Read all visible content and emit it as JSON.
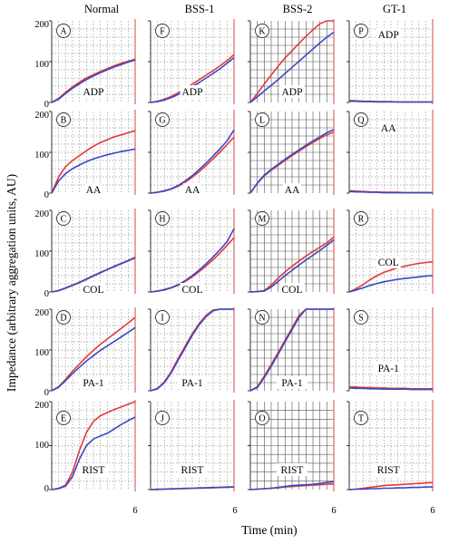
{
  "figure": {
    "column_headers": [
      "Normal",
      "BSS-1",
      "BSS-2",
      "GT-1"
    ],
    "y_axis_label": "Impedance (arbitrary aggregation units, AU)",
    "x_axis_label": "Time (min)",
    "y_tick_labels": [
      "0",
      "100",
      "200"
    ],
    "x_end_tick_label": "6"
  },
  "colors": {
    "red_trace": "#e23a3a",
    "blue_trace": "#3a48c4",
    "end_line": "#e88a8a"
  },
  "chart_data": {
    "type": "line",
    "layout": "5 rows (agonists) x 4 columns (subjects)",
    "x_unit": "min",
    "xlim": [
      0,
      6
    ],
    "ylim": [
      0,
      200
    ],
    "x": [
      0,
      0.5,
      1,
      1.5,
      2,
      2.5,
      3,
      3.5,
      4,
      4.5,
      5,
      5.5,
      6
    ],
    "columns": [
      "Normal",
      "BSS-1",
      "BSS-2",
      "GT-1"
    ],
    "rows": [
      "ADP",
      "AA",
      "COL",
      "PA-1",
      "RIST"
    ],
    "panels": [
      {
        "letter": "A",
        "column": "Normal",
        "agonist": "ADP",
        "red": [
          0,
          10,
          25,
          38,
          50,
          60,
          68,
          76,
          83,
          90,
          96,
          101,
          106
        ],
        "blue": [
          0,
          8,
          22,
          35,
          46,
          56,
          65,
          73,
          80,
          87,
          93,
          99,
          104
        ]
      },
      {
        "letter": "F",
        "column": "BSS-1",
        "agonist": "ADP",
        "red": [
          0,
          3,
          8,
          15,
          24,
          34,
          45,
          56,
          67,
          78,
          90,
          103,
          117
        ],
        "blue": [
          0,
          2,
          6,
          12,
          20,
          29,
          39,
          49,
          60,
          71,
          83,
          96,
          110
        ]
      },
      {
        "letter": "K",
        "column": "BSS-2",
        "agonist": "ADP",
        "red": [
          0,
          22,
          45,
          67,
          89,
          109,
          127,
          145,
          162,
          178,
          193,
          206,
          215
        ],
        "blue": [
          0,
          14,
          28,
          42,
          56,
          71,
          86,
          101,
          116,
          131,
          146,
          160,
          172
        ]
      },
      {
        "letter": "P",
        "column": "GT-1",
        "agonist": "ADP",
        "red": [
          5,
          4,
          3,
          3,
          2,
          2,
          2,
          1,
          1,
          1,
          1,
          1,
          1
        ],
        "blue": [
          3,
          3,
          2,
          2,
          1,
          1,
          1,
          1,
          1,
          1,
          1,
          1,
          1
        ]
      },
      {
        "letter": "B",
        "column": "Normal",
        "agonist": "AA",
        "red": [
          0,
          40,
          65,
          80,
          92,
          104,
          115,
          124,
          131,
          138,
          143,
          148,
          153
        ],
        "blue": [
          0,
          30,
          48,
          60,
          69,
          77,
          84,
          89,
          94,
          98,
          102,
          105,
          108
        ]
      },
      {
        "letter": "G",
        "column": "BSS-1",
        "agonist": "AA",
        "red": [
          0,
          2,
          5,
          10,
          17,
          27,
          39,
          53,
          68,
          84,
          101,
          119,
          137
        ],
        "blue": [
          0,
          2,
          6,
          11,
          19,
          30,
          43,
          58,
          74,
          91,
          109,
          128,
          155
        ]
      },
      {
        "letter": "L",
        "column": "BSS-2",
        "agonist": "AA",
        "red": [
          0,
          24,
          42,
          56,
          68,
          80,
          92,
          103,
          114,
          124,
          134,
          143,
          150
        ],
        "blue": [
          0,
          25,
          44,
          58,
          71,
          83,
          95,
          106,
          117,
          128,
          138,
          148,
          156
        ]
      },
      {
        "letter": "Q",
        "column": "GT-1",
        "agonist": "AA",
        "red": [
          6,
          5,
          4,
          3,
          3,
          2,
          2,
          2,
          1,
          1,
          1,
          1,
          1
        ],
        "blue": [
          4,
          3,
          3,
          2,
          2,
          1,
          1,
          1,
          1,
          1,
          1,
          1,
          1
        ]
      },
      {
        "letter": "C",
        "column": "Normal",
        "agonist": "COL",
        "red": [
          0,
          4,
          10,
          17,
          24,
          32,
          40,
          48,
          55,
          62,
          69,
          76,
          83
        ],
        "blue": [
          0,
          3,
          9,
          16,
          23,
          31,
          39,
          47,
          55,
          63,
          70,
          77,
          85
        ]
      },
      {
        "letter": "H",
        "column": "BSS-1",
        "agonist": "COL",
        "red": [
          0,
          2,
          5,
          10,
          17,
          26,
          37,
          50,
          64,
          79,
          96,
          114,
          133
        ],
        "blue": [
          0,
          2,
          6,
          11,
          18,
          28,
          40,
          54,
          69,
          86,
          104,
          123,
          155
        ]
      },
      {
        "letter": "M",
        "column": "BSS-2",
        "agonist": "COL",
        "red": [
          0,
          1,
          3,
          17,
          34,
          49,
          63,
          76,
          88,
          99,
          110,
          120,
          135
        ],
        "blue": [
          0,
          1,
          2,
          12,
          26,
          40,
          53,
          66,
          78,
          90,
          102,
          114,
          128
        ]
      },
      {
        "letter": "R",
        "column": "GT-1",
        "agonist": "COL",
        "red": [
          0,
          8,
          18,
          30,
          40,
          48,
          54,
          59,
          63,
          67,
          70,
          72,
          74
        ],
        "blue": [
          0,
          5,
          10,
          16,
          21,
          25,
          28,
          31,
          33,
          35,
          37,
          39,
          40
        ]
      },
      {
        "letter": "D",
        "column": "Normal",
        "agonist": "PA-1",
        "red": [
          0,
          10,
          28,
          48,
          66,
          83,
          99,
          114,
          127,
          140,
          153,
          166,
          180
        ],
        "blue": [
          0,
          9,
          25,
          42,
          58,
          73,
          86,
          99,
          110,
          121,
          132,
          143,
          155
        ]
      },
      {
        "letter": "I",
        "column": "BSS-1",
        "agonist": "PA-1",
        "red": [
          0,
          6,
          22,
          48,
          80,
          110,
          140,
          165,
          185,
          198,
          200,
          200,
          200
        ],
        "blue": [
          0,
          5,
          20,
          45,
          76,
          106,
          136,
          162,
          182,
          196,
          200,
          200,
          200
        ]
      },
      {
        "letter": "N",
        "column": "BSS-2",
        "agonist": "PA-1",
        "red": [
          0,
          10,
          36,
          64,
          94,
          124,
          154,
          185,
          200,
          200,
          200,
          200,
          200
        ],
        "blue": [
          0,
          8,
          32,
          60,
          90,
          120,
          150,
          180,
          200,
          200,
          200,
          200,
          200
        ]
      },
      {
        "letter": "S",
        "column": "GT-1",
        "agonist": "PA-1",
        "red": [
          10,
          9,
          8,
          8,
          7,
          7,
          6,
          6,
          6,
          5,
          5,
          5,
          5
        ],
        "blue": [
          7,
          6,
          6,
          5,
          5,
          4,
          4,
          4,
          4,
          3,
          3,
          3,
          3
        ]
      },
      {
        "letter": "E",
        "column": "Normal",
        "agonist": "RIST",
        "red": [
          0,
          3,
          10,
          40,
          90,
          130,
          155,
          168,
          175,
          182,
          188,
          194,
          200
        ],
        "blue": [
          0,
          2,
          8,
          30,
          70,
          100,
          115,
          122,
          128,
          138,
          148,
          157,
          165
        ]
      },
      {
        "letter": "J",
        "column": "BSS-1",
        "agonist": "RIST",
        "red": [
          0,
          0,
          1,
          1,
          2,
          2,
          3,
          3,
          4,
          4,
          5,
          5,
          6
        ],
        "blue": [
          0,
          1,
          1,
          2,
          2,
          3,
          3,
          4,
          4,
          5,
          5,
          6,
          6
        ]
      },
      {
        "letter": "O",
        "column": "BSS-2",
        "agonist": "RIST",
        "red": [
          0,
          1,
          2,
          3,
          4,
          6,
          7,
          8,
          9,
          10,
          11,
          12,
          13
        ],
        "blue": [
          0,
          1,
          2,
          3,
          5,
          7,
          9,
          10,
          11,
          12,
          14,
          16,
          18
        ]
      },
      {
        "letter": "T",
        "column": "GT-1",
        "agonist": "RIST",
        "red": [
          0,
          1,
          3,
          5,
          7,
          9,
          10,
          11,
          12,
          13,
          14,
          15,
          16
        ],
        "blue": [
          0,
          1,
          1,
          2,
          2,
          3,
          3,
          4,
          4,
          5,
          5,
          6,
          6
        ]
      }
    ]
  }
}
